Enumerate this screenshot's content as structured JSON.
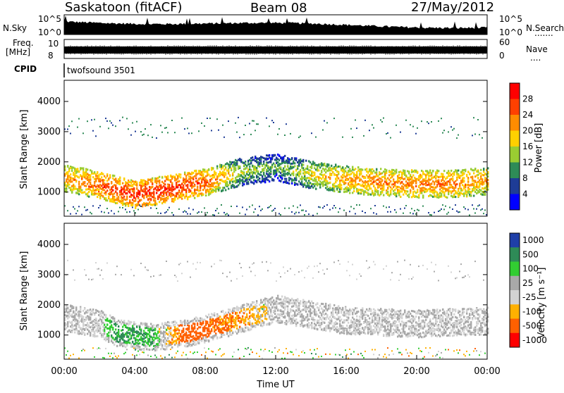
{
  "header": {
    "station": "Saskatoon (fitACF)",
    "beam": "Beam 08",
    "date": "27/May/2012"
  },
  "strips": {
    "nsky_label": "N.Sky",
    "nsky_ticks": [
      "10^5",
      "10^0"
    ],
    "nsearch_label": "N.Search",
    "nsearch_dots": ".......",
    "freq_label_1": "Freq.",
    "freq_label_2": "[MHz]",
    "freq_ticks": [
      "10",
      "8"
    ],
    "nave_label": "Nave",
    "nave_dots": "....",
    "nave_ticks": [
      "60",
      "0"
    ],
    "cpid_label": "CPID",
    "cpid_value": "twofsound 3501"
  },
  "chart_data": [
    {
      "type": "heatmap",
      "name": "power-panel",
      "xlabel": "",
      "ylabel": "Slant Range [km]",
      "xlim": [
        "00:00",
        "24:00"
      ],
      "ylim": [
        200,
        4700
      ],
      "yticks": [
        1000,
        2000,
        3000,
        4000
      ],
      "colorbar_label": "Power [dB]",
      "colorbar_ticks": [
        "28",
        "24",
        "20",
        "16",
        "12",
        "8",
        "4"
      ],
      "colorbar_colors": [
        "#ff0000",
        "#ff4000",
        "#ff8c00",
        "#ffd000",
        "#9acd32",
        "#2e8b57",
        "#1e3c96",
        "#0000ff"
      ],
      "backscatter_band": [
        {
          "t": 0,
          "range_km": 1500,
          "power_db": 22
        },
        {
          "t": 2,
          "range_km": 1250,
          "power_db": 26
        },
        {
          "t": 4,
          "range_km": 950,
          "power_db": 28
        },
        {
          "t": 6,
          "range_km": 1150,
          "power_db": 28
        },
        {
          "t": 8,
          "range_km": 1350,
          "power_db": 26
        },
        {
          "t": 10,
          "range_km": 1700,
          "power_db": 16
        },
        {
          "t": 12,
          "range_km": 1850,
          "power_db": 12
        },
        {
          "t": 14,
          "range_km": 1600,
          "power_db": 18
        },
        {
          "t": 16,
          "range_km": 1450,
          "power_db": 22
        },
        {
          "t": 18,
          "range_km": 1350,
          "power_db": 24
        },
        {
          "t": 20,
          "range_km": 1300,
          "power_db": 24
        },
        {
          "t": 22,
          "range_km": 1300,
          "power_db": 24
        },
        {
          "t": 24,
          "range_km": 1400,
          "power_db": 22
        }
      ]
    },
    {
      "type": "heatmap",
      "name": "velocity-panel",
      "xlabel": "Time UT",
      "ylabel": "Slant Range [km]",
      "xlim": [
        "00:00",
        "24:00"
      ],
      "ylim": [
        200,
        4700
      ],
      "xticks": [
        "00:00",
        "04:00",
        "08:00",
        "12:00",
        "16:00",
        "20:00",
        "00:00"
      ],
      "yticks": [
        1000,
        2000,
        3000,
        4000
      ],
      "colorbar_label": "Velocity [m s⁻¹]",
      "colorbar_ticks": [
        "1000",
        "500",
        "100",
        "25",
        "-25",
        "-100",
        "-500",
        "-1000"
      ],
      "colorbar_colors": [
        "#1f3fa8",
        "#2e8b57",
        "#32cd32",
        "#a9a9a9",
        "#d3d3d3",
        "#ffb000",
        "#ff6000",
        "#ff0000"
      ],
      "backscatter_band": [
        {
          "t": 0,
          "range_km": 1600,
          "velocity": 0
        },
        {
          "t": 2,
          "range_km": 1400,
          "velocity": 0
        },
        {
          "t": 3,
          "range_km": 1100,
          "velocity": 300
        },
        {
          "t": 5,
          "range_km": 950,
          "velocity": 200
        },
        {
          "t": 7,
          "range_km": 1100,
          "velocity": -500
        },
        {
          "t": 9,
          "range_km": 1400,
          "velocity": -300
        },
        {
          "t": 12,
          "range_km": 1900,
          "velocity": 0
        },
        {
          "t": 16,
          "range_km": 1500,
          "velocity": 0
        },
        {
          "t": 20,
          "range_km": 1400,
          "velocity": 0
        },
        {
          "t": 24,
          "range_km": 1500,
          "velocity": 0
        }
      ]
    }
  ]
}
